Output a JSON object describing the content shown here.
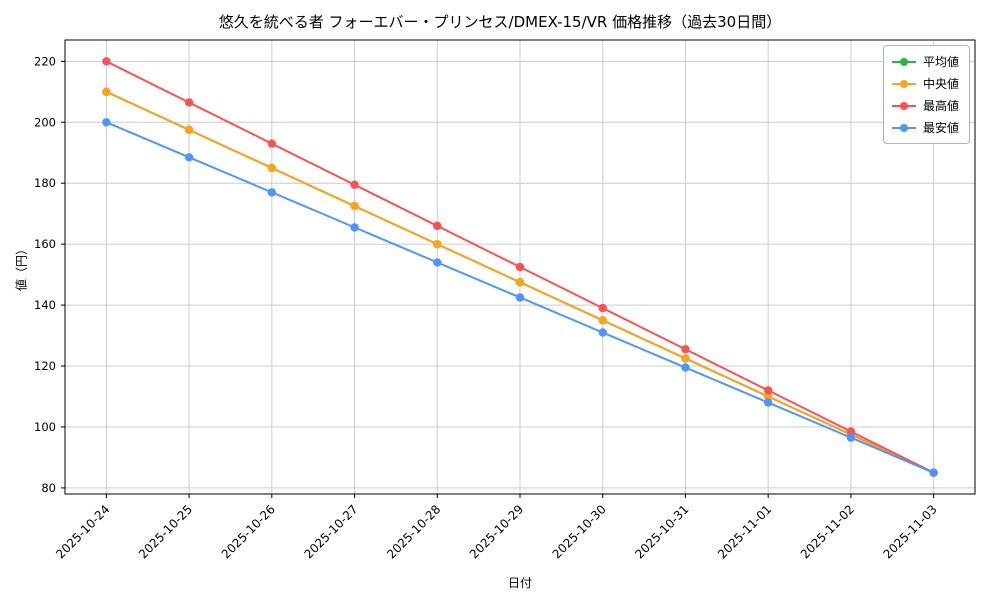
{
  "chart_data": {
    "type": "line",
    "title": "悠久を統べる者 フォーエバー・プリンセス/DMEX-15/VR 価格推移（過去30日間）",
    "xlabel": "日付",
    "ylabel": "値（円）",
    "categories": [
      "2025-10-24",
      "2025-10-25",
      "2025-10-26",
      "2025-10-27",
      "2025-10-28",
      "2025-10-29",
      "2025-10-30",
      "2025-10-31",
      "2025-11-01",
      "2025-11-02",
      "2025-11-03"
    ],
    "series": [
      {
        "name": "平均値",
        "color": "#2bb24c",
        "values": [
          210,
          197.5,
          185,
          172.5,
          160,
          147.5,
          135,
          122.5,
          110,
          97.5,
          85
        ]
      },
      {
        "name": "中央値",
        "color": "#ffa21e",
        "values": [
          210,
          197.5,
          185,
          172.5,
          160,
          147.5,
          135,
          122.5,
          110,
          97.5,
          85
        ]
      },
      {
        "name": "最高値",
        "color": "#fa5252",
        "values": [
          220,
          206.5,
          193,
          179.5,
          166,
          152.5,
          139,
          125.5,
          112,
          98.5,
          85
        ]
      },
      {
        "name": "最安値",
        "color": "#4d96ff",
        "values": [
          200,
          188.5,
          177,
          165.5,
          154,
          142.5,
          131,
          119.5,
          108,
          96.5,
          85
        ]
      }
    ],
    "yticks": [
      80,
      100,
      120,
      140,
      160,
      180,
      200,
      220
    ],
    "ylim": [
      78,
      227
    ],
    "grid": true,
    "grid_color": "#cccccc",
    "axis_color": "#000000",
    "legend_position": "top-right"
  }
}
